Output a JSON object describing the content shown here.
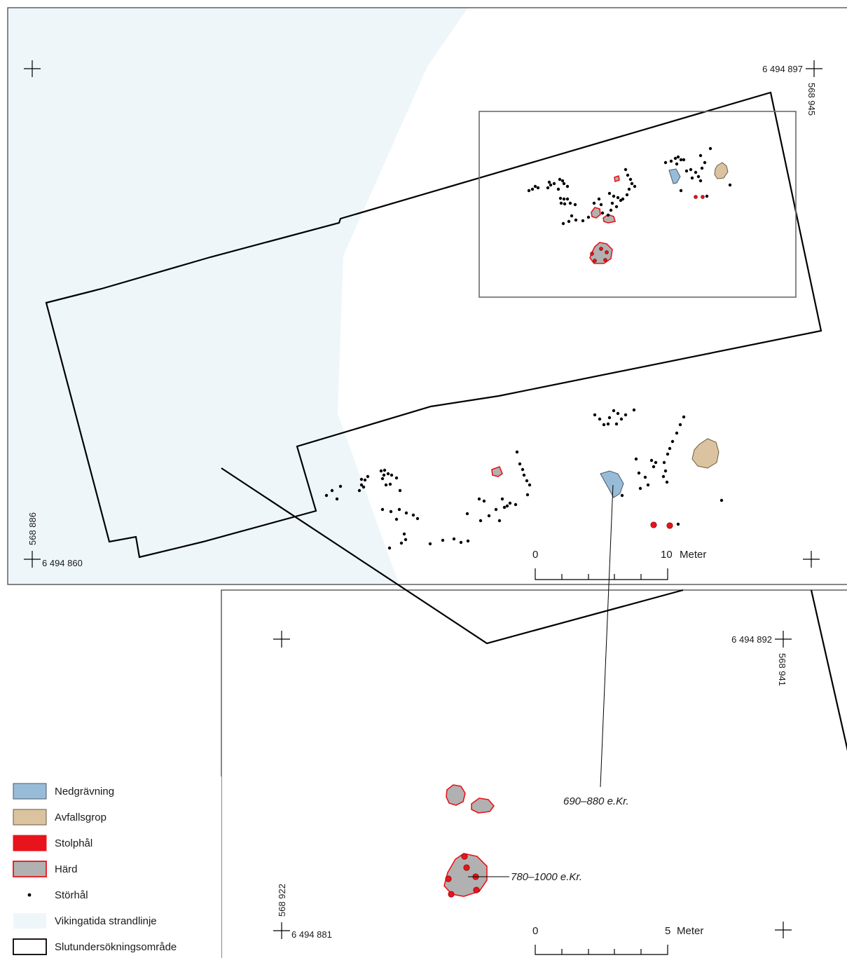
{
  "colors": {
    "shore": "#eef6fa",
    "nedgravning": "#98bcd8",
    "avfallsgrop": "#dcc3a0",
    "stolphal": "#e8141b",
    "hard_fill": "#b1b1b1",
    "hard_outline": "#e8141b",
    "border": "#000000",
    "inset_frame": "#6b6b6b"
  },
  "upper_map": {
    "coord_north": "6 494 897",
    "coord_east": "568 945",
    "coord_south": "6 494 860",
    "coord_west": "568 886",
    "scale": {
      "zero": "0",
      "end": "10",
      "unit": "Meter"
    }
  },
  "lower_map": {
    "coord_north": "6 494 892",
    "coord_east": "568 941",
    "coord_south": "6 494 881",
    "coord_west": "568 922",
    "scale": {
      "zero": "0",
      "end": "5",
      "unit": "Meter"
    },
    "label_nedgravning": "690–880 e.Kr.",
    "label_hard": "780–1000 e.Kr."
  },
  "legend": {
    "items": [
      {
        "label": "Nedgrävning",
        "symbol": "nedgravning-swatch"
      },
      {
        "label": "Avfallsgrop",
        "symbol": "avfallsgrop-swatch"
      },
      {
        "label": "Stolphål",
        "symbol": "stolphal-swatch"
      },
      {
        "label": "Härd",
        "symbol": "hard-swatch"
      },
      {
        "label": "Störhål",
        "symbol": "storhal-dot"
      },
      {
        "label": "Vikingatida strandlinje",
        "symbol": "shore-swatch"
      },
      {
        "label": "Slutundersökningsområde",
        "symbol": "area-swatch"
      }
    ]
  }
}
